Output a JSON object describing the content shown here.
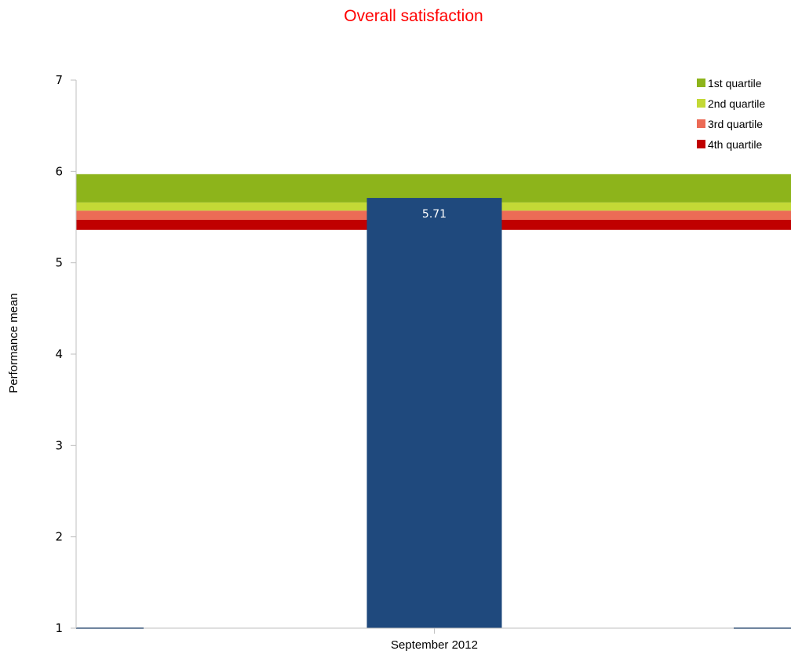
{
  "chart_data": {
    "type": "bar",
    "title": "Overall satisfaction",
    "title_color": "#ff0000",
    "xlabel": "",
    "ylabel": "Performance mean",
    "ylim": [
      1,
      7
    ],
    "yticks": [
      "1",
      "2",
      "3",
      "4",
      "5",
      "6",
      "7"
    ],
    "categories": [
      "September 2012"
    ],
    "values": [
      5.71
    ],
    "data_labels": [
      "5.71"
    ],
    "bar_color": "#1f497d",
    "data_label_color": "#ffffff",
    "grid": false,
    "legend_position": "top-right",
    "quartile_bands": [
      {
        "name": "1st quartile",
        "from": 5.66,
        "to": 5.97,
        "color": "#8db41b"
      },
      {
        "name": "2nd quartile",
        "from": 5.57,
        "to": 5.66,
        "color": "#c3d936"
      },
      {
        "name": "3rd quartile",
        "from": 5.47,
        "to": 5.57,
        "color": "#ec6b56"
      },
      {
        "name": "4th quartile",
        "from": 5.36,
        "to": 5.47,
        "color": "#c00000"
      }
    ],
    "reference_line_color": "#1f497d"
  }
}
